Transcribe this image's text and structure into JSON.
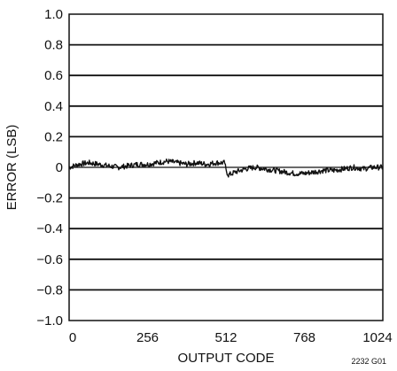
{
  "chart_data": {
    "type": "line",
    "title": "",
    "xlabel": "OUTPUT CODE",
    "ylabel": "ERROR (LSB)",
    "xlim": [
      0,
      1024
    ],
    "ylim": [
      -1.0,
      1.0
    ],
    "xticks": [
      0,
      256,
      512,
      768,
      1024
    ],
    "xtick_labels": [
      "0",
      "256",
      "512",
      "768",
      "1024"
    ],
    "yticks": [
      1.0,
      0.8,
      0.6,
      0.4,
      0.2,
      0,
      -0.2,
      -0.4,
      -0.6,
      -0.8,
      -1.0
    ],
    "ytick_labels": [
      "1.0",
      "0.8",
      "0.6",
      "0.4",
      "0.2",
      "0",
      "−0.2",
      "−0.4",
      "−0.6",
      "−0.8",
      "−1.0"
    ],
    "grid": "horizontal",
    "legend": "none",
    "series": [
      {
        "x": [
          0,
          32,
          64,
          96,
          128,
          160,
          192,
          224,
          256,
          288,
          320,
          352,
          384,
          416,
          448,
          480,
          508,
          512,
          520,
          544,
          576,
          608,
          640,
          672,
          704,
          736,
          768,
          800,
          832,
          864,
          896,
          928,
          960,
          992,
          1024
        ],
        "y": [
          0.0,
          0.02,
          0.03,
          0.02,
          0.01,
          0.0,
          0.01,
          0.02,
          0.02,
          0.03,
          0.04,
          0.03,
          0.02,
          0.03,
          0.02,
          0.03,
          0.03,
          -0.02,
          -0.05,
          -0.03,
          -0.01,
          0.0,
          -0.01,
          -0.02,
          -0.03,
          -0.04,
          -0.04,
          -0.03,
          -0.02,
          -0.02,
          -0.01,
          0.0,
          -0.01,
          0.0,
          0.0
        ]
      }
    ],
    "figure_code": "2232 G01"
  }
}
